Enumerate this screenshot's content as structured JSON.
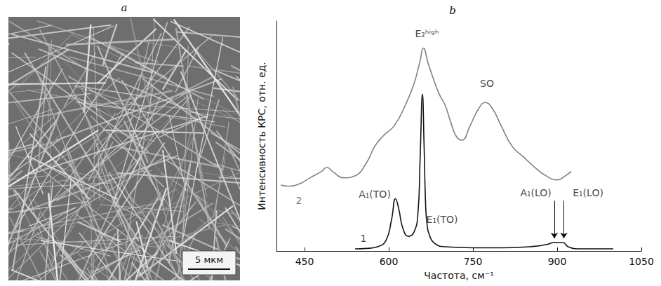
{
  "image_panel": {
    "panel_label": "a",
    "scale_bar_label": "5 мкм"
  },
  "chart_data": {
    "type": "line",
    "panel_label": "b",
    "x_label": "Частота, см⁻¹",
    "y_label": "Интенсивность КРС, отн. ед.",
    "xlim": [
      400,
      1050
    ],
    "xticks": [
      450,
      600,
      750,
      900,
      1050
    ],
    "ylim": [
      0,
      110
    ],
    "yticks": [],
    "tick_labels": "x",
    "grid": false,
    "series": [
      {
        "name": "1",
        "color": "#111111",
        "label_at": [
          555,
          6
        ],
        "x": [
          540,
          560,
          580,
          595,
          605,
          612,
          618,
          625,
          635,
          645,
          652,
          656,
          660,
          663,
          666,
          669,
          672,
          680,
          700,
          750,
          800,
          850,
          880,
          895,
          910,
          920,
          940,
          1000
        ],
        "values": [
          1,
          1.2,
          2,
          5,
          15,
          25,
          20,
          11,
          7,
          9,
          18,
          45,
          75,
          50,
          20,
          11,
          8,
          4,
          2,
          1.5,
          1.5,
          2,
          3,
          4,
          4,
          2,
          1,
          1
        ]
      },
      {
        "name": "2",
        "color": "#808080",
        "label_at": [
          440,
          24
        ],
        "x": [
          408,
          420,
          440,
          460,
          480,
          490,
          500,
          520,
          540,
          560,
          575,
          590,
          610,
          630,
          645,
          655,
          662,
          670,
          680,
          690,
          700,
          710,
          720,
          730,
          745,
          760,
          772,
          785,
          800,
          820,
          840,
          860,
          880,
          900,
          915,
          925
        ],
        "values": [
          31.5,
          31,
          32,
          35,
          38,
          40,
          38,
          35,
          36,
          42,
          50,
          55,
          60,
          70,
          80,
          90,
          97,
          90,
          82,
          75,
          70,
          62,
          55,
          53,
          60,
          68,
          71,
          68,
          60,
          50,
          45,
          40,
          36,
          34,
          36,
          38
        ]
      }
    ],
    "annotations": [
      {
        "text": "E₂ʰⁱᵍʰ",
        "x": 668,
        "y": 104
      },
      {
        "text": "SO",
        "x": 775,
        "y": 80
      },
      {
        "text": "A₁(TO)",
        "x": 575,
        "y": 27
      },
      {
        "text": "E₁(TO)",
        "x": 695,
        "y": 15
      },
      {
        "text": "A₁(LO)",
        "x": 862,
        "y": 28,
        "arrow": [
          [
            895,
            24
          ],
          [
            895,
            6
          ]
        ]
      },
      {
        "text": "E₁(LO)",
        "x": 955,
        "y": 28,
        "arrow": [
          [
            912,
            24
          ],
          [
            912,
            6
          ]
        ]
      }
    ]
  }
}
